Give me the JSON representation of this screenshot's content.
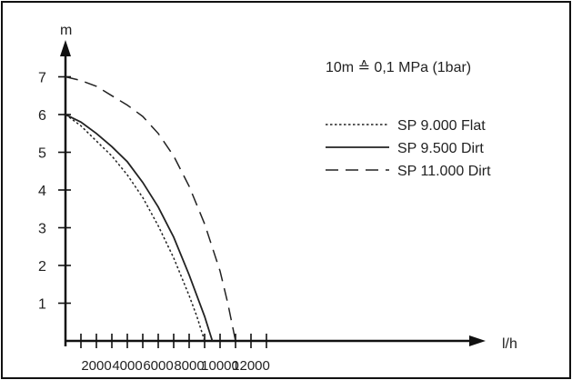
{
  "chart_data": {
    "type": "line",
    "title": "",
    "xlabel": "l/h",
    "ylabel": "m",
    "xlim": [
      0,
      14000
    ],
    "ylim": [
      0,
      8
    ],
    "x_ticks": [
      2000,
      4000,
      6000,
      8000,
      10000,
      12000
    ],
    "y_ticks": [
      1,
      2,
      3,
      4,
      5,
      6,
      7
    ],
    "x_tick_labels": [
      "2000",
      "4000",
      "6000",
      "8000",
      "10000",
      "12000"
    ],
    "y_tick_labels": [
      "1",
      "2",
      "3",
      "4",
      "5",
      "6",
      "7"
    ],
    "grid": false,
    "legend_position": "top-right",
    "annotation": "10m ≙ 0,1 MPa (1bar)",
    "series": [
      {
        "name": "SP 9.000 Flat",
        "style": "dotted",
        "x": [
          0,
          1000,
          2000,
          3000,
          4000,
          5000,
          6000,
          7000,
          8000,
          8500,
          9000
        ],
        "y": [
          6.0,
          5.7,
          5.3,
          4.9,
          4.4,
          3.8,
          3.05,
          2.2,
          1.2,
          0.65,
          0.0
        ]
      },
      {
        "name": "SP 9.500 Dirt",
        "style": "solid",
        "x": [
          0,
          1000,
          2000,
          3000,
          4000,
          5000,
          6000,
          7000,
          8000,
          9000,
          9500
        ],
        "y": [
          6.0,
          5.8,
          5.5,
          5.15,
          4.75,
          4.2,
          3.55,
          2.75,
          1.75,
          0.65,
          0.0
        ]
      },
      {
        "name": "SP 11.000 Dirt",
        "style": "dashed",
        "x": [
          0,
          1000,
          2000,
          3000,
          4000,
          5000,
          6000,
          7000,
          8000,
          9000,
          10000,
          10500,
          11000
        ],
        "y": [
          7.0,
          6.9,
          6.75,
          6.5,
          6.25,
          5.95,
          5.5,
          4.9,
          4.1,
          3.1,
          1.85,
          1.0,
          0.0
        ]
      }
    ]
  }
}
